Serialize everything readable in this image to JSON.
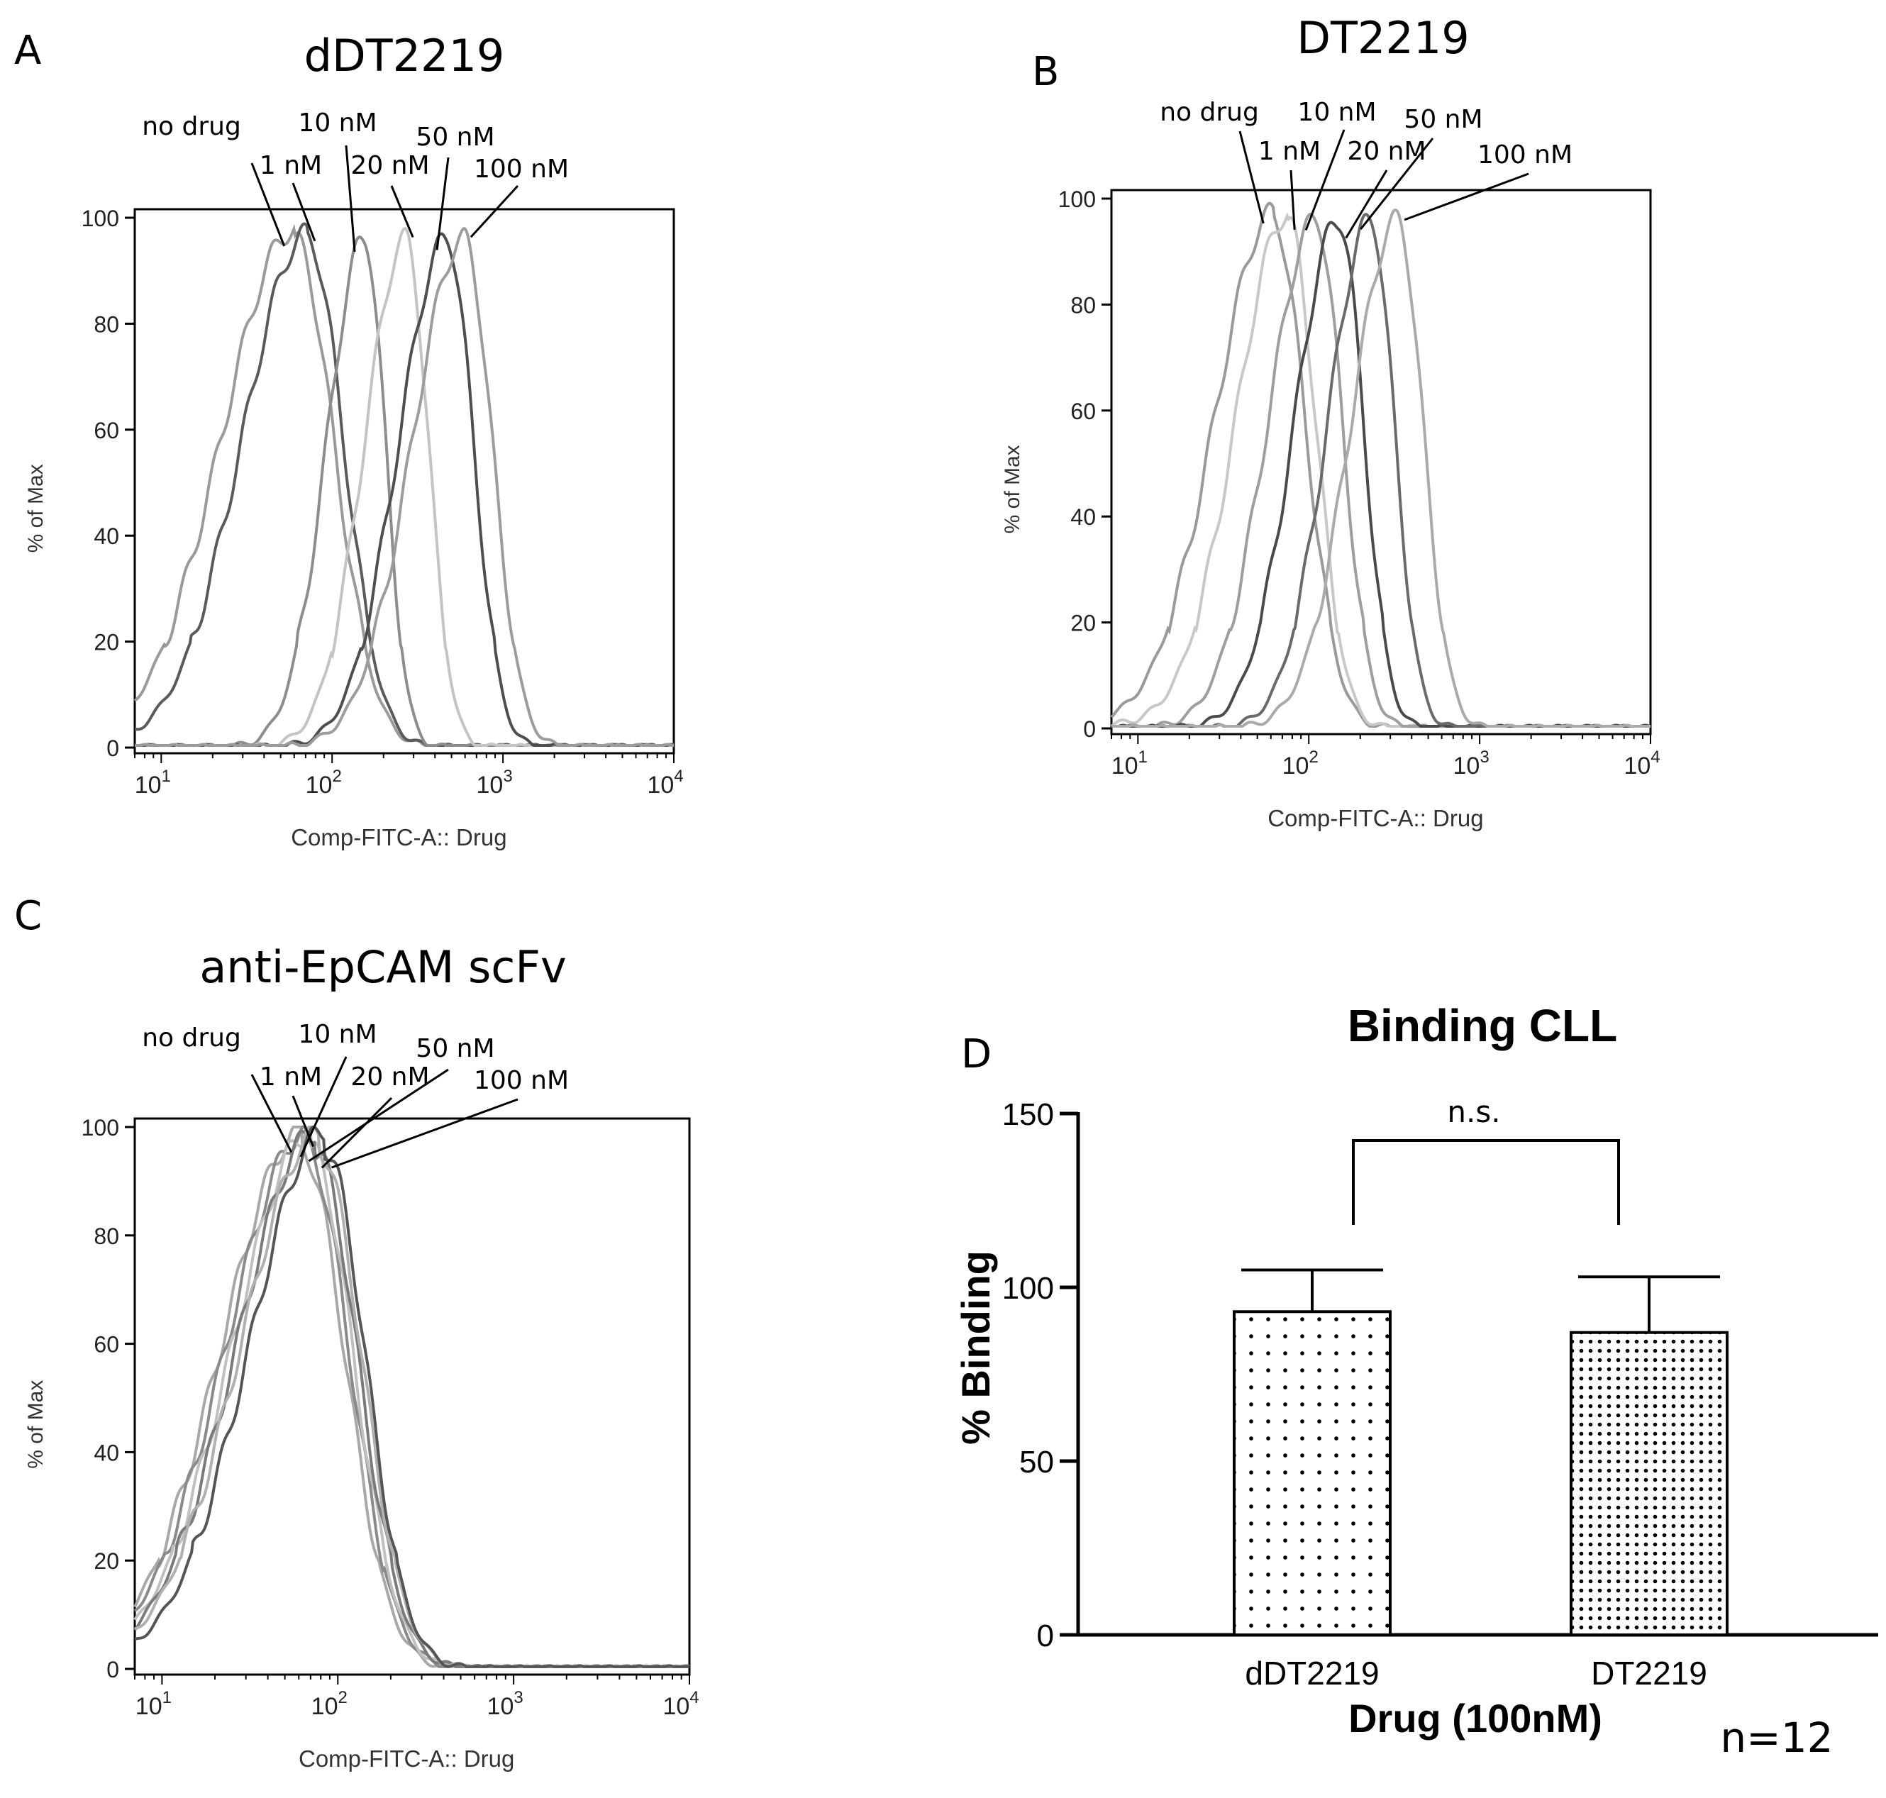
{
  "chart_data": [
    {
      "panel_letter": "A",
      "type": "line",
      "title": "dDT2219",
      "xlabel": "Comp-FITC-A:: Drug",
      "ylabel": "% of Max",
      "xscale": "log",
      "xlim": [
        7,
        10000
      ],
      "ylim": [
        0,
        100
      ],
      "yticks": [
        "0",
        "20",
        "40",
        "60",
        "80",
        "100"
      ],
      "xticks": [
        {
          "base": "10",
          "exp": "1",
          "value": 10
        },
        {
          "base": "10",
          "exp": "2",
          "value": 100
        },
        {
          "base": "10",
          "exp": "3",
          "value": 1000
        },
        {
          "base": "10",
          "exp": "4",
          "value": 10000
        }
      ],
      "series": [
        {
          "name": "no drug",
          "peak": 60,
          "width": 0.42,
          "tail": 0.05,
          "color": "#9a9a9a"
        },
        {
          "name": "1 nM",
          "peak": 72,
          "width": 0.38,
          "tail": 0.03,
          "color": "#5a5a5a"
        },
        {
          "name": "10 nM",
          "peak": 155,
          "width": 0.22,
          "tail": 0.0,
          "color": "#8d8d8d"
        },
        {
          "name": "20 nM",
          "peak": 270,
          "width": 0.24,
          "tail": 0.0,
          "color": "#c4c4c4"
        },
        {
          "name": "50 nM",
          "peak": 470,
          "width": 0.28,
          "tail": 0.0,
          "color": "#4e4e4e"
        },
        {
          "name": "100 nM",
          "peak": 590,
          "width": 0.3,
          "tail": 0.0,
          "color": "#9c9c9c"
        }
      ]
    },
    {
      "panel_letter": "B",
      "type": "line",
      "title": "DT2219",
      "xlabel": "Comp-FITC-A:: Drug",
      "ylabel": "% of Max",
      "xscale": "log",
      "xlim": [
        7,
        10000
      ],
      "ylim": [
        0,
        100
      ],
      "yticks": [
        "0",
        "20",
        "40",
        "60",
        "80",
        "100"
      ],
      "xticks": [
        {
          "base": "10",
          "exp": "1",
          "value": 10
        },
        {
          "base": "10",
          "exp": "2",
          "value": 100
        },
        {
          "base": "10",
          "exp": "3",
          "value": 1000
        },
        {
          "base": "10",
          "exp": "4",
          "value": 10000
        }
      ],
      "series": [
        {
          "name": "no drug",
          "peak": 62,
          "width": 0.34,
          "tail": 0.04,
          "color": "#9a9a9a"
        },
        {
          "name": "1 nM",
          "peak": 75,
          "width": 0.3,
          "tail": 0.03,
          "color": "#c8c8c8"
        },
        {
          "name": "10 nM",
          "peak": 110,
          "width": 0.28,
          "tail": 0.0,
          "color": "#9e9e9e"
        },
        {
          "name": "20 nM",
          "peak": 150,
          "width": 0.26,
          "tail": 0.0,
          "color": "#4a4a4a"
        },
        {
          "name": "50 nM",
          "peak": 230,
          "width": 0.25,
          "tail": 0.0,
          "color": "#6a6a6a"
        },
        {
          "name": "100 nM",
          "peak": 330,
          "width": 0.27,
          "tail": 0.0,
          "color": "#aaaaaa"
        }
      ]
    },
    {
      "panel_letter": "C",
      "type": "line",
      "title": "anti-EpCAM scFv",
      "xlabel": "Comp-FITC-A:: Drug",
      "ylabel": "% of Max",
      "xscale": "log",
      "xlim": [
        7,
        10000
      ],
      "ylim": [
        0,
        100
      ],
      "yticks": [
        "0",
        "20",
        "40",
        "60",
        "80",
        "100"
      ],
      "xticks": [
        {
          "base": "10",
          "exp": "1",
          "value": 10
        },
        {
          "base": "10",
          "exp": "2",
          "value": 100
        },
        {
          "base": "10",
          "exp": "3",
          "value": 1000
        },
        {
          "base": "10",
          "exp": "4",
          "value": 10000
        }
      ],
      "series": [
        {
          "name": "no drug",
          "peak": 62,
          "width": 0.45,
          "tail": 0.09,
          "color": "#a8a8a8"
        },
        {
          "name": "1 nM",
          "peak": 66,
          "width": 0.45,
          "tail": 0.09,
          "color": "#8a8a8a"
        },
        {
          "name": "10 nM",
          "peak": 70,
          "width": 0.44,
          "tail": 0.09,
          "color": "#c0c0c0"
        },
        {
          "name": "20 nM",
          "peak": 74,
          "width": 0.44,
          "tail": 0.09,
          "color": "#7a7a7a"
        },
        {
          "name": "50 nM",
          "peak": 78,
          "width": 0.44,
          "tail": 0.09,
          "color": "#b0b0b0"
        },
        {
          "name": "100 nM",
          "peak": 84,
          "width": 0.42,
          "tail": 0.1,
          "color": "#555555"
        }
      ]
    },
    {
      "panel_letter": "D",
      "type": "bar",
      "title": "Binding CLL",
      "xlabel": "Drug (100nM)",
      "ylabel": "% Binding",
      "ylim": [
        0,
        150
      ],
      "yticks": [
        "0",
        "50",
        "100",
        "150"
      ],
      "categories": [
        "dDT2219",
        "DT2219"
      ],
      "values": [
        93,
        87
      ],
      "errors": [
        12,
        16
      ],
      "significance": "n.s.",
      "sample_size": "n=12"
    }
  ]
}
